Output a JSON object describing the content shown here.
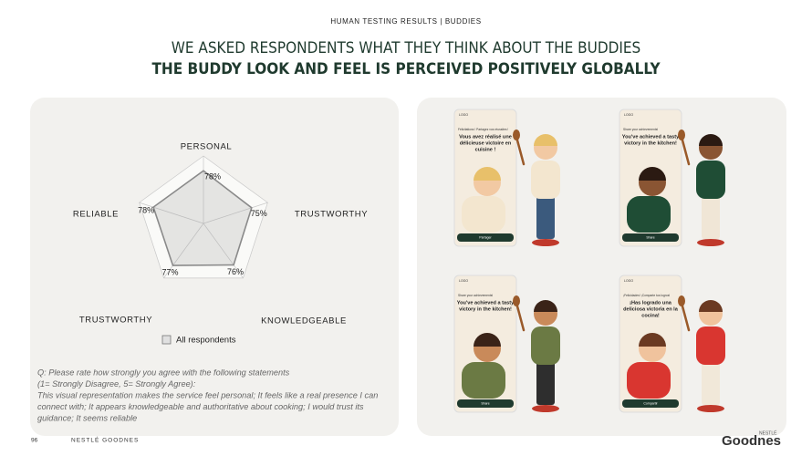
{
  "header": {
    "section": "HUMAN TESTING RESULTS | BUDDIES",
    "title": "WE ASKED RESPONDENTS WHAT THEY THINK ABOUT THE BUDDIES",
    "subtitle": "THE BUDDY LOOK AND FEEL IS PERCEIVED POSITIVELY GLOBALLY"
  },
  "chart_data": {
    "type": "radar",
    "categories": [
      "PERSONAL",
      "TRUSTWORTHY",
      "KNOWLEDGEABLE",
      "TRUSTWORTHY",
      "RELIABLE"
    ],
    "series": [
      {
        "name": "All respondents",
        "color": "#8a8a8a",
        "values": [
          78,
          75,
          76,
          77,
          78
        ],
        "value_labels": [
          "78%",
          "75%",
          "76%",
          "77%",
          "78%"
        ]
      }
    ],
    "rlim": [
      0,
      100
    ],
    "rticks": [
      20,
      40,
      60,
      80,
      100
    ],
    "grid": true
  },
  "footnote": [
    "Q: Please rate how strongly you agree with the following statements",
    "(1= Strongly Disagree, 5= Strongly Agree):",
    "This visual representation makes the service feel personal; It feels like a real presence I can",
    "connect with; It  appears knowledgeable and authoritative about cooking; I would trust  its",
    "guidance; It  seems reliable"
  ],
  "phones": [
    {
      "logo": "LOGO",
      "subtitle": "Félicitations ! Partagez vos réussites !",
      "headline": [
        "Vous avez réalisé une",
        "délicieuse victoire en",
        "cuisine !"
      ],
      "button": "Partager"
    },
    {
      "logo": "LOGO",
      "subtitle": "Share your achievements!",
      "headline": [
        "You've achieved a tasty",
        "victory in the kitchen!"
      ],
      "button": "Share"
    },
    {
      "logo": "LOGO",
      "subtitle": "Share your achievements!",
      "headline": [
        "You've achieved a tasty",
        "victory in the kitchen!"
      ],
      "button": "Share"
    },
    {
      "logo": "LOGO",
      "subtitle": "¡Felicidades! ¡Comparte tus logros!",
      "headline": [
        "¡Has logrado una",
        "deliciosa victoria en la",
        "cocina!"
      ],
      "button": "Compartir"
    }
  ],
  "footer": {
    "page": "96",
    "brand": "NESTLÉ GOODNES",
    "logo_small": "NESTLÉ",
    "logo": "Goodnes"
  }
}
